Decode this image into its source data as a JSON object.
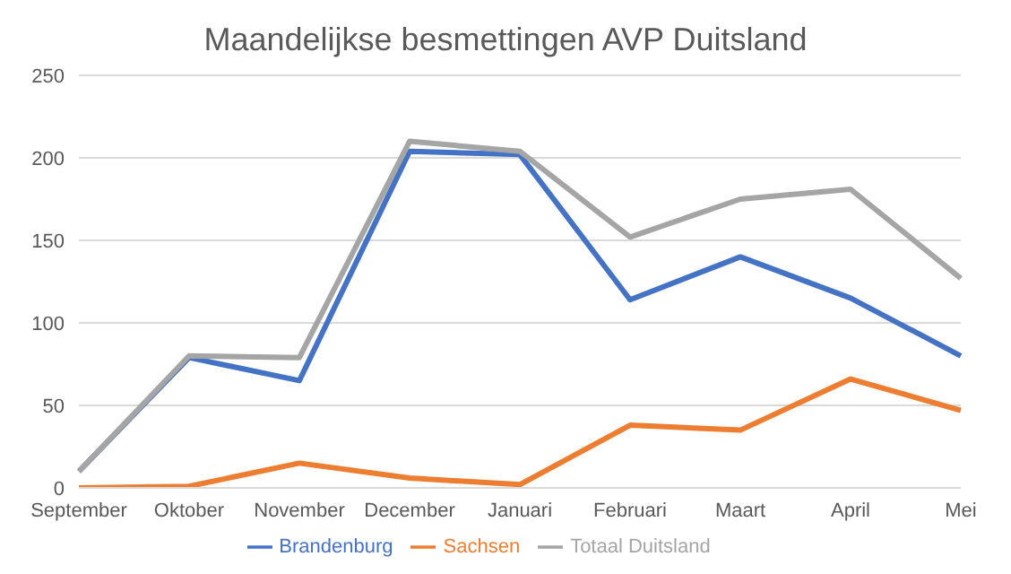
{
  "chart_data": {
    "type": "line",
    "title": "Maandelijkse besmettingen AVP Duitsland",
    "categories": [
      "September",
      "Oktober",
      "November",
      "December",
      "Januari",
      "Februari",
      "Maart",
      "April",
      "Mei"
    ],
    "series": [
      {
        "name": "Brandenburg",
        "color": "#4472c4",
        "values": [
          10,
          79,
          65,
          204,
          202,
          114,
          140,
          115,
          80
        ]
      },
      {
        "name": "Sachsen",
        "color": "#ed7d31",
        "values": [
          0,
          1,
          15,
          6,
          2,
          38,
          35,
          66,
          47
        ]
      },
      {
        "name": "Totaal Duitsland",
        "color": "#a5a5a5",
        "values": [
          10,
          80,
          79,
          210,
          204,
          152,
          175,
          181,
          127
        ]
      }
    ],
    "ylim": [
      0,
      250
    ],
    "yticks": [
      0,
      50,
      100,
      150,
      200,
      250
    ],
    "grid": "y",
    "legend": "bottom",
    "marker": "none",
    "line_style": "solid"
  }
}
